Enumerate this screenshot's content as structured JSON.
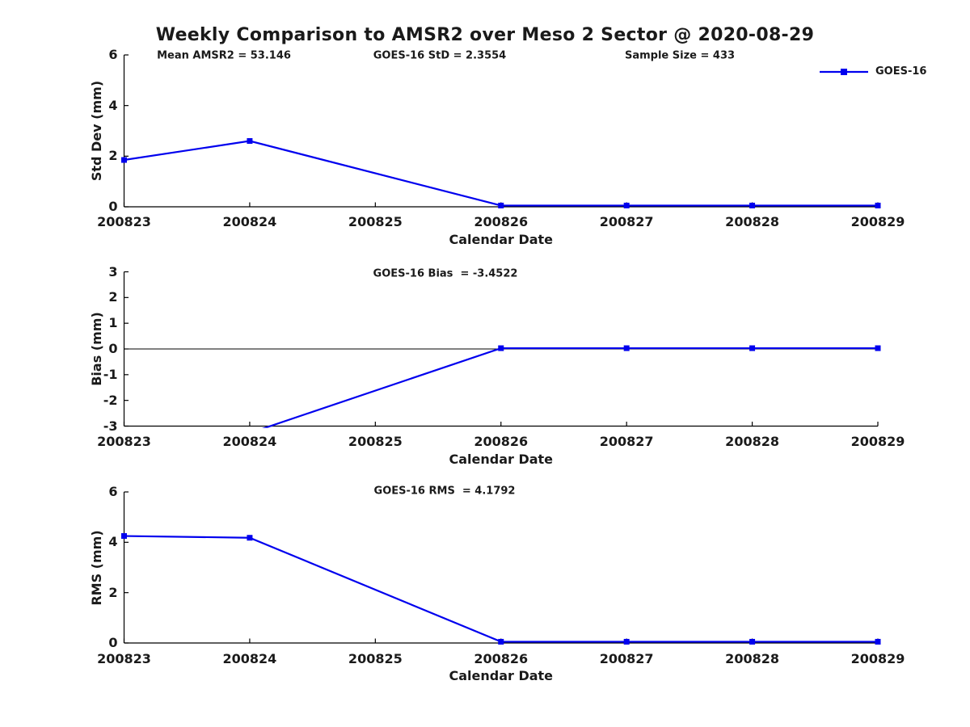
{
  "title": "Weekly Comparison to AMSR2 over Meso 2 Sector @ 2020-08-29",
  "legend": {
    "label": "GOES-16",
    "position": "top-right",
    "boxed": false
  },
  "colors": {
    "series": "#0000EE",
    "axis": "#000000",
    "text": "#1a1a1a",
    "background": "#ffffff"
  },
  "x_tick_labels": [
    "200823",
    "200824",
    "200825",
    "200826",
    "200827",
    "200828",
    "200829"
  ],
  "chart_data": [
    {
      "type": "line",
      "name": "std-dev",
      "series_name": "GOES-16",
      "ylabel": "Std Dev (mm)",
      "xlabel": "Calendar Date",
      "ylim": [
        0,
        6
      ],
      "yticks": [
        0,
        2,
        4,
        6
      ],
      "xlim": [
        200823,
        200829
      ],
      "x": [
        200823,
        200824,
        200826,
        200827,
        200828,
        200829
      ],
      "y": [
        1.85,
        2.6,
        0.05,
        0.05,
        0.05,
        0.05
      ],
      "marker": "square",
      "grid": false,
      "zero_line": false,
      "annotations": [
        "Mean AMSR2 = 53.146",
        "GOES-16 StD = 2.3554",
        "Sample Size = 433"
      ]
    },
    {
      "type": "line",
      "name": "bias",
      "series_name": "GOES-16",
      "ylabel": "Bias (mm)",
      "xlabel": "Calendar Date",
      "ylim": [
        -3,
        3
      ],
      "yticks": [
        -3,
        -2,
        -1,
        0,
        1,
        2,
        3
      ],
      "xlim": [
        200823,
        200829
      ],
      "x": [
        200823,
        200824,
        200826,
        200827,
        200828,
        200829
      ],
      "y": [
        -3.5,
        -3.27,
        0.03,
        0.03,
        0.03,
        0.03
      ],
      "marker": "square",
      "grid": false,
      "zero_line": true,
      "annotations": [
        "GOES-16 Bias  = -3.4522"
      ]
    },
    {
      "type": "line",
      "name": "rms",
      "series_name": "GOES-16",
      "ylabel": "RMS (mm)",
      "xlabel": "Calendar Date",
      "ylim": [
        0,
        6
      ],
      "yticks": [
        0,
        2,
        4,
        6
      ],
      "xlim": [
        200823,
        200829
      ],
      "x": [
        200823,
        200824,
        200826,
        200827,
        200828,
        200829
      ],
      "y": [
        4.25,
        4.18,
        0.05,
        0.05,
        0.05,
        0.05
      ],
      "marker": "square",
      "grid": false,
      "zero_line": false,
      "annotations": [
        "GOES-16 RMS  = 4.1792"
      ]
    }
  ]
}
